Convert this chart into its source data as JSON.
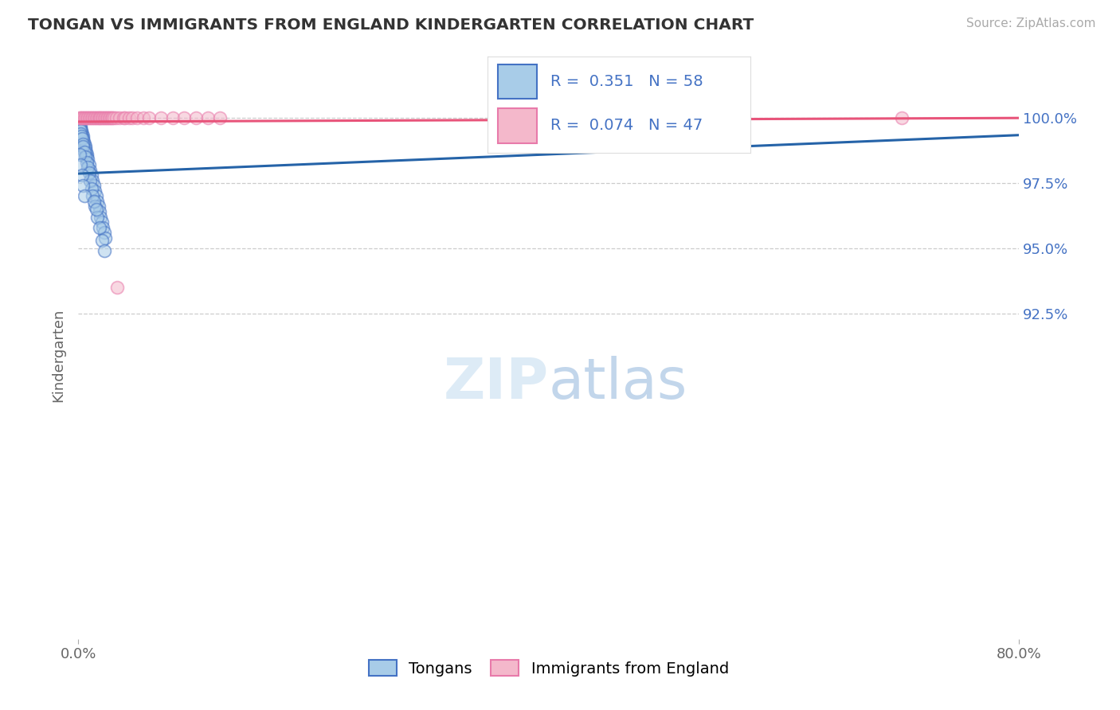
{
  "title": "TONGAN VS IMMIGRANTS FROM ENGLAND KINDERGARTEN CORRELATION CHART",
  "source": "Source: ZipAtlas.com",
  "ylabel": "Kindergarten",
  "legend_label_blue": "Tongans",
  "legend_label_pink": "Immigrants from England",
  "legend_blue_r": "0.351",
  "legend_blue_n": "58",
  "legend_pink_r": "0.074",
  "legend_pink_n": "47",
  "xmin": 0.0,
  "xmax": 80.0,
  "ymin": 80.0,
  "ymax": 101.8,
  "yaxis_values": [
    100.0,
    97.5,
    95.0,
    92.5
  ],
  "yaxis_labels": [
    "100.0%",
    "97.5%",
    "95.0%",
    "92.5%"
  ],
  "xtick_positions": [
    0.0,
    80.0
  ],
  "xtick_labels": [
    "0.0%",
    "80.0%"
  ],
  "blue_color": "#a8cce8",
  "blue_edge_color": "#4472c4",
  "pink_color": "#f4b8cb",
  "pink_edge_color": "#e87aaa",
  "blue_line_color": "#2563a8",
  "pink_line_color": "#e8547a",
  "text_color_blue": "#4472c4",
  "grid_color": "#cccccc",
  "background": "#ffffff",
  "blue_x": [
    0.1,
    0.15,
    0.2,
    0.25,
    0.3,
    0.35,
    0.4,
    0.45,
    0.5,
    0.55,
    0.6,
    0.65,
    0.7,
    0.75,
    0.8,
    0.9,
    1.0,
    1.1,
    1.2,
    1.3,
    1.4,
    1.5,
    1.6,
    1.7,
    1.8,
    1.9,
    2.0,
    2.1,
    2.2,
    2.3,
    0.1,
    0.15,
    0.2,
    0.25,
    0.3,
    0.35,
    0.4,
    0.5,
    0.6,
    0.7,
    0.8,
    0.9,
    1.0,
    1.1,
    1.2,
    1.4,
    1.6,
    1.8,
    2.0,
    2.2,
    0.1,
    0.2,
    0.3,
    0.4,
    0.5,
    1.3,
    1.5,
    39.0
  ],
  "blue_y": [
    99.8,
    99.7,
    99.6,
    99.5,
    99.4,
    99.3,
    99.2,
    99.1,
    99.0,
    98.9,
    98.8,
    98.7,
    98.6,
    98.5,
    98.4,
    98.2,
    98.0,
    97.8,
    97.6,
    97.4,
    97.2,
    97.0,
    96.8,
    96.6,
    96.4,
    96.2,
    96.0,
    95.8,
    95.6,
    95.4,
    99.6,
    99.5,
    99.4,
    99.3,
    99.2,
    99.0,
    98.9,
    98.7,
    98.5,
    98.3,
    98.1,
    97.9,
    97.6,
    97.3,
    97.0,
    96.6,
    96.2,
    95.8,
    95.3,
    94.9,
    98.6,
    98.2,
    97.8,
    97.4,
    97.0,
    96.8,
    96.5,
    99.8
  ],
  "pink_x": [
    0.1,
    0.2,
    0.3,
    0.4,
    0.5,
    0.6,
    0.7,
    0.8,
    0.9,
    1.0,
    1.1,
    1.2,
    1.3,
    1.4,
    1.5,
    1.6,
    1.7,
    1.8,
    1.9,
    2.0,
    2.1,
    2.2,
    2.3,
    2.4,
    2.5,
    2.6,
    2.7,
    2.8,
    2.9,
    3.0,
    3.2,
    3.5,
    3.8,
    4.0,
    4.3,
    4.6,
    5.0,
    5.5,
    6.0,
    7.0,
    8.0,
    9.0,
    10.0,
    11.0,
    12.0,
    70.0,
    3.3
  ],
  "pink_y": [
    100.0,
    100.0,
    100.0,
    100.0,
    100.0,
    100.0,
    100.0,
    100.0,
    100.0,
    100.0,
    100.0,
    100.0,
    100.0,
    100.0,
    100.0,
    100.0,
    100.0,
    100.0,
    100.0,
    100.0,
    100.0,
    100.0,
    100.0,
    100.0,
    100.0,
    100.0,
    100.0,
    100.0,
    100.0,
    100.0,
    100.0,
    100.0,
    100.0,
    100.0,
    100.0,
    100.0,
    100.0,
    100.0,
    100.0,
    100.0,
    100.0,
    100.0,
    100.0,
    100.0,
    100.0,
    100.0,
    93.5
  ],
  "zipatlas_text": "ZIPatlas",
  "zipatlas_color": "#d0dff0"
}
